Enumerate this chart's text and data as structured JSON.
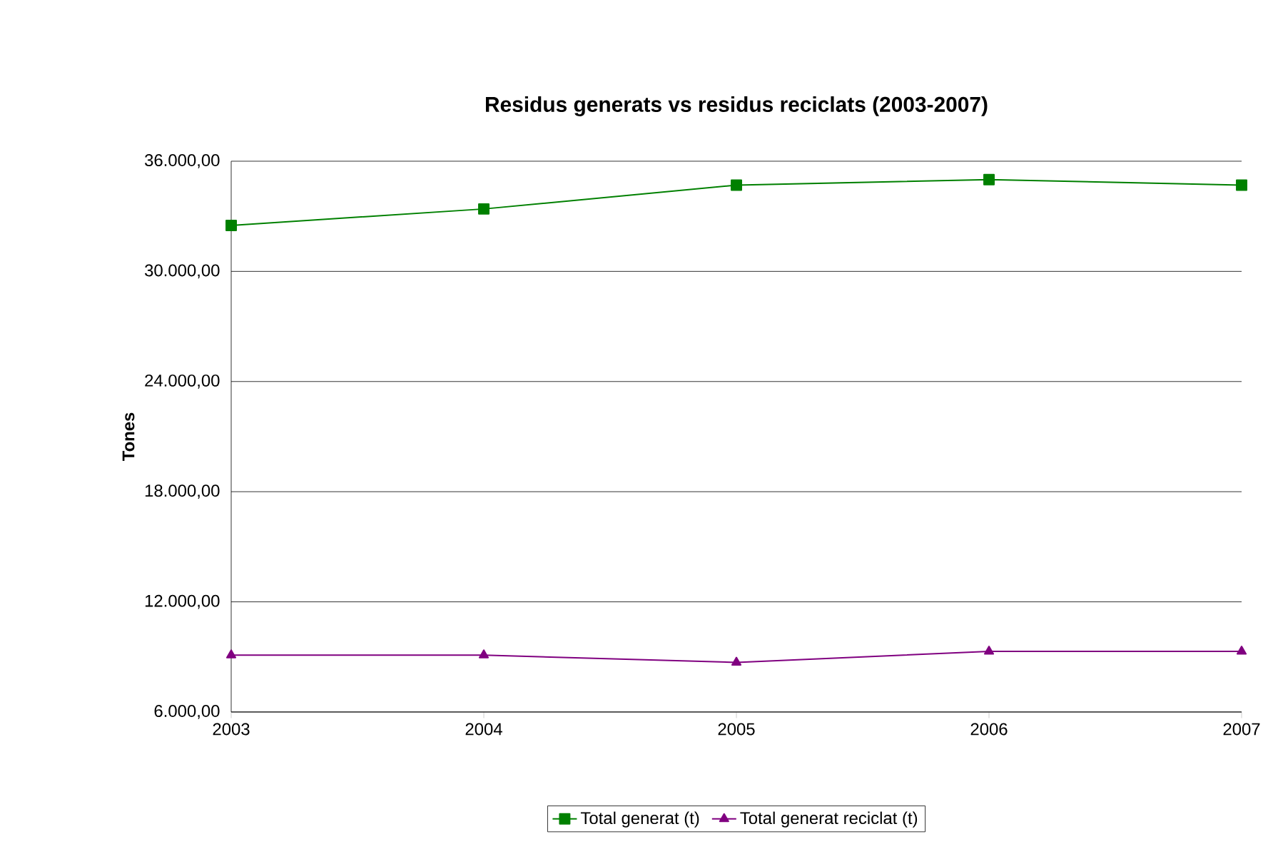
{
  "chart_data": {
    "type": "line",
    "title": "Residus generats vs residus reciclats (2003-2007)",
    "ylabel": "Tones",
    "categories": [
      "2003",
      "2004",
      "2005",
      "2006",
      "2007"
    ],
    "series": [
      {
        "name": "Total generat (t)",
        "color": "#008000",
        "marker": "square",
        "values": [
          32500,
          33400,
          34700,
          35000,
          34700
        ]
      },
      {
        "name": "Total generat reciclat (t)",
        "color": "#800080",
        "marker": "triangle",
        "values": [
          9100,
          9100,
          8700,
          9300,
          9300
        ]
      }
    ],
    "ylim": [
      6000,
      36000
    ],
    "yticks": [
      {
        "value": 6000,
        "label": "6.000,00"
      },
      {
        "value": 12000,
        "label": "12.000,00"
      },
      {
        "value": 18000,
        "label": "18.000,00"
      },
      {
        "value": 24000,
        "label": "24.000,00"
      },
      {
        "value": 30000,
        "label": "30.000,00"
      },
      {
        "value": 36000,
        "label": "36.000,00"
      }
    ],
    "grid": "y",
    "legend": "bottom",
    "line_style": "solid"
  }
}
